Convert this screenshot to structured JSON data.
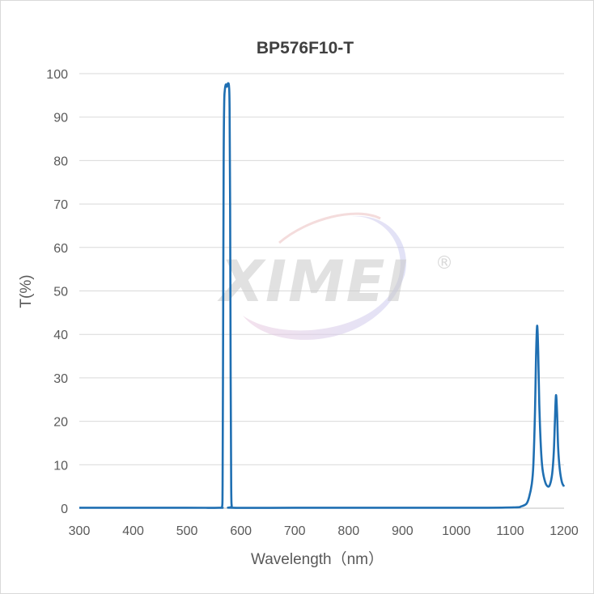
{
  "chart_data": {
    "type": "line",
    "title": "BP576F10-T",
    "xlabel": "Wavelength（nm）",
    "ylabel": "T(%)",
    "xlim": [
      300,
      1200
    ],
    "ylim": [
      0,
      100
    ],
    "x_ticks": [
      "300",
      "400",
      "500",
      "600",
      "700",
      "800",
      "900",
      "1000",
      "1100",
      "1200"
    ],
    "y_ticks": [
      "0",
      "10",
      "20",
      "30",
      "40",
      "50",
      "60",
      "70",
      "80",
      "90",
      "100"
    ],
    "grid": true,
    "legend": "none",
    "series": [
      {
        "color": "#1f6fb2",
        "points": [
          [
            300,
            0.1
          ],
          [
            500,
            0.1
          ],
          [
            560,
            0.1
          ],
          [
            565,
            0.3
          ],
          [
            566,
            5
          ],
          [
            567,
            40
          ],
          [
            568,
            80
          ],
          [
            569,
            93
          ],
          [
            570,
            96
          ],
          [
            572,
            97.5
          ],
          [
            574,
            97
          ],
          [
            576,
            97.8
          ],
          [
            578,
            97
          ],
          [
            579,
            92
          ],
          [
            580,
            70
          ],
          [
            581,
            30
          ],
          [
            582,
            5
          ],
          [
            583,
            0.5
          ],
          [
            585,
            0.1
          ],
          [
            700,
            0.1
          ],
          [
            900,
            0.1
          ],
          [
            1050,
            0.1
          ],
          [
            1110,
            0.2
          ],
          [
            1120,
            0.4
          ],
          [
            1130,
            1
          ],
          [
            1135,
            2.5
          ],
          [
            1140,
            5.5
          ],
          [
            1143,
            10
          ],
          [
            1146,
            22
          ],
          [
            1148,
            35
          ],
          [
            1150,
            42
          ],
          [
            1152,
            36
          ],
          [
            1154,
            24
          ],
          [
            1157,
            14
          ],
          [
            1160,
            9
          ],
          [
            1165,
            6
          ],
          [
            1170,
            5
          ],
          [
            1174,
            5.5
          ],
          [
            1178,
            8
          ],
          [
            1181,
            13
          ],
          [
            1183,
            20
          ],
          [
            1185,
            26
          ],
          [
            1187,
            22
          ],
          [
            1189,
            14
          ],
          [
            1192,
            9
          ],
          [
            1196,
            6
          ],
          [
            1200,
            5
          ]
        ]
      }
    ]
  },
  "watermark": {
    "text": "XIMEI",
    "mark": "®"
  }
}
